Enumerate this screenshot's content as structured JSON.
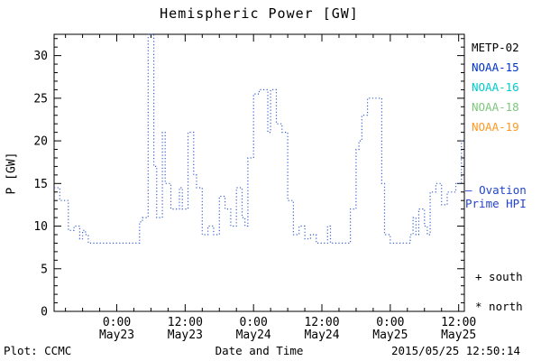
{
  "title": "Hemispheric Power [GW]",
  "ylabel": "P [GW]",
  "xlabel": "Date and Time",
  "footer": {
    "left": "Plot: CCMC",
    "right": "2015/05/25 12:50:14"
  },
  "legend": {
    "satellites": [
      {
        "label": "METP-02",
        "color": "#000000"
      },
      {
        "label": "NOAA-15",
        "color": "#0033cc"
      },
      {
        "label": "NOAA-16",
        "color": "#00cccc"
      },
      {
        "label": "NOAA-18",
        "color": "#7dc87d"
      },
      {
        "label": "NOAA-19",
        "color": "#ff9922"
      }
    ],
    "ovation": {
      "sample_dash": "—",
      "line1": "Ovation",
      "line2": "Prime HPI",
      "color": "#2244cc"
    },
    "markers": [
      "+ south",
      "* north"
    ]
  },
  "chart_data": {
    "type": "line",
    "title": "Hemispheric Power [GW]",
    "xlabel": "Date and Time",
    "ylabel": "P [GW]",
    "line_style": "dotted-step",
    "line_color": "#3a5fcd",
    "grid": false,
    "ylim": [
      0,
      32.5
    ],
    "yticks": [
      0,
      5,
      10,
      15,
      20,
      25,
      30
    ],
    "x_hours_range": [
      0,
      72
    ],
    "xticks": [
      {
        "t": 11,
        "time": "0:00",
        "date": "May23"
      },
      {
        "t": 23,
        "time": "12:00",
        "date": "May23"
      },
      {
        "t": 35,
        "time": "0:00",
        "date": "May24"
      },
      {
        "t": 47,
        "time": "12:00",
        "date": "May24"
      },
      {
        "t": 59,
        "time": "0:00",
        "date": "May25"
      },
      {
        "t": 71,
        "time": "12:00",
        "date": "May25"
      }
    ],
    "series": [
      {
        "name": "Ovation Prime HPI",
        "points": [
          [
            0,
            14.5
          ],
          [
            1,
            13
          ],
          [
            2,
            13
          ],
          [
            2.5,
            9.5
          ],
          [
            3.5,
            10
          ],
          [
            4.5,
            8.5
          ],
          [
            5,
            9.5
          ],
          [
            5.5,
            9
          ],
          [
            6,
            8
          ],
          [
            14,
            8
          ],
          [
            15,
            10.5
          ],
          [
            15.5,
            11
          ],
          [
            16.5,
            32.5
          ],
          [
            17.5,
            17
          ],
          [
            18,
            11
          ],
          [
            19,
            21
          ],
          [
            19.5,
            15
          ],
          [
            20.5,
            12
          ],
          [
            22,
            14.5
          ],
          [
            22.5,
            12
          ],
          [
            23.5,
            21
          ],
          [
            24.5,
            16
          ],
          [
            25,
            14.5
          ],
          [
            26,
            9
          ],
          [
            27,
            10
          ],
          [
            28,
            9
          ],
          [
            29,
            13.5
          ],
          [
            30,
            12
          ],
          [
            31,
            10
          ],
          [
            32,
            14.5
          ],
          [
            33,
            11
          ],
          [
            33.5,
            10
          ],
          [
            34,
            18
          ],
          [
            35,
            25.5
          ],
          [
            36,
            26
          ],
          [
            37,
            26
          ],
          [
            37.5,
            21
          ],
          [
            38,
            26
          ],
          [
            39,
            22
          ],
          [
            40,
            21
          ],
          [
            41,
            13
          ],
          [
            42,
            9
          ],
          [
            43,
            10
          ],
          [
            44,
            8.5
          ],
          [
            45,
            9
          ],
          [
            46,
            8
          ],
          [
            48,
            10
          ],
          [
            48.5,
            8
          ],
          [
            51,
            8
          ],
          [
            52,
            12
          ],
          [
            53,
            19
          ],
          [
            53.5,
            20
          ],
          [
            54,
            23
          ],
          [
            55,
            25
          ],
          [
            57,
            25
          ],
          [
            57.5,
            15
          ],
          [
            58,
            9
          ],
          [
            59,
            8
          ],
          [
            62,
            8
          ],
          [
            62.5,
            9
          ],
          [
            63,
            11
          ],
          [
            63.5,
            9
          ],
          [
            64,
            12
          ],
          [
            65,
            10
          ],
          [
            65.5,
            9
          ],
          [
            66,
            14
          ],
          [
            67,
            15
          ],
          [
            68,
            12.5
          ],
          [
            69,
            14
          ],
          [
            70.5,
            15
          ],
          [
            71.5,
            20
          ],
          [
            72,
            20
          ]
        ]
      }
    ]
  }
}
